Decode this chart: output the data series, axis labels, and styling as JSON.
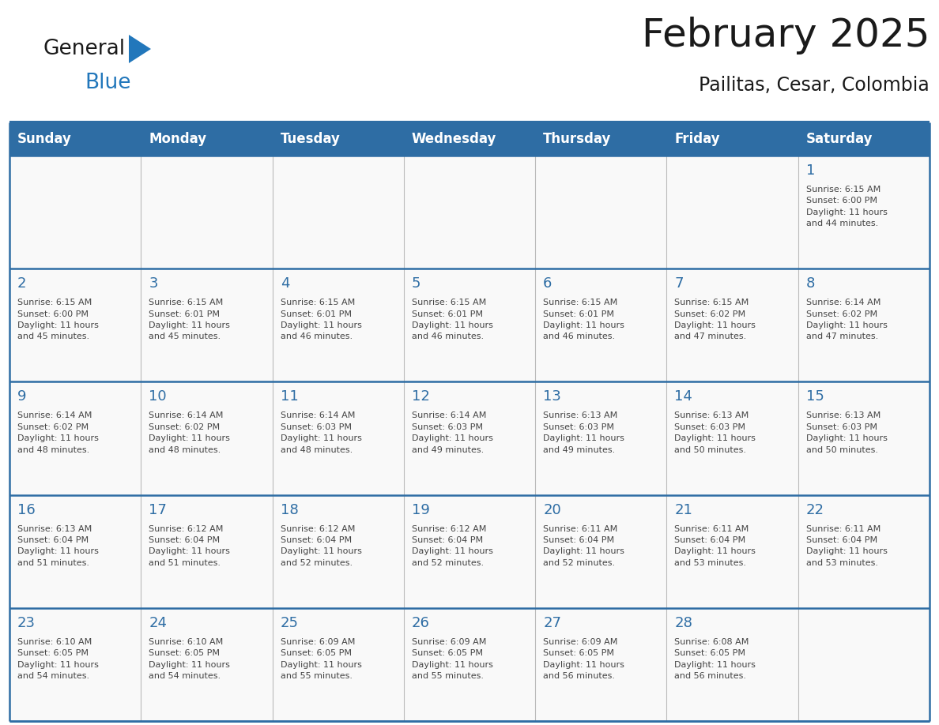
{
  "title": "February 2025",
  "subtitle": "Pailitas, Cesar, Colombia",
  "header_bg": "#2E6DA4",
  "header_fg": "#FFFFFF",
  "cell_bg": "#F9F9F9",
  "day_number_color": "#2E6DA4",
  "text_color": "#444444",
  "border_color": "#2E6DA4",
  "row_line_color": "#2E6DA4",
  "col_line_color": "#BBBBBB",
  "days_of_week": [
    "Sunday",
    "Monday",
    "Tuesday",
    "Wednesday",
    "Thursday",
    "Friday",
    "Saturday"
  ],
  "weeks": [
    [
      {
        "day": null,
        "info": null
      },
      {
        "day": null,
        "info": null
      },
      {
        "day": null,
        "info": null
      },
      {
        "day": null,
        "info": null
      },
      {
        "day": null,
        "info": null
      },
      {
        "day": null,
        "info": null
      },
      {
        "day": 1,
        "info": "Sunrise: 6:15 AM\nSunset: 6:00 PM\nDaylight: 11 hours\nand 44 minutes."
      }
    ],
    [
      {
        "day": 2,
        "info": "Sunrise: 6:15 AM\nSunset: 6:00 PM\nDaylight: 11 hours\nand 45 minutes."
      },
      {
        "day": 3,
        "info": "Sunrise: 6:15 AM\nSunset: 6:01 PM\nDaylight: 11 hours\nand 45 minutes."
      },
      {
        "day": 4,
        "info": "Sunrise: 6:15 AM\nSunset: 6:01 PM\nDaylight: 11 hours\nand 46 minutes."
      },
      {
        "day": 5,
        "info": "Sunrise: 6:15 AM\nSunset: 6:01 PM\nDaylight: 11 hours\nand 46 minutes."
      },
      {
        "day": 6,
        "info": "Sunrise: 6:15 AM\nSunset: 6:01 PM\nDaylight: 11 hours\nand 46 minutes."
      },
      {
        "day": 7,
        "info": "Sunrise: 6:15 AM\nSunset: 6:02 PM\nDaylight: 11 hours\nand 47 minutes."
      },
      {
        "day": 8,
        "info": "Sunrise: 6:14 AM\nSunset: 6:02 PM\nDaylight: 11 hours\nand 47 minutes."
      }
    ],
    [
      {
        "day": 9,
        "info": "Sunrise: 6:14 AM\nSunset: 6:02 PM\nDaylight: 11 hours\nand 48 minutes."
      },
      {
        "day": 10,
        "info": "Sunrise: 6:14 AM\nSunset: 6:02 PM\nDaylight: 11 hours\nand 48 minutes."
      },
      {
        "day": 11,
        "info": "Sunrise: 6:14 AM\nSunset: 6:03 PM\nDaylight: 11 hours\nand 48 minutes."
      },
      {
        "day": 12,
        "info": "Sunrise: 6:14 AM\nSunset: 6:03 PM\nDaylight: 11 hours\nand 49 minutes."
      },
      {
        "day": 13,
        "info": "Sunrise: 6:13 AM\nSunset: 6:03 PM\nDaylight: 11 hours\nand 49 minutes."
      },
      {
        "day": 14,
        "info": "Sunrise: 6:13 AM\nSunset: 6:03 PM\nDaylight: 11 hours\nand 50 minutes."
      },
      {
        "day": 15,
        "info": "Sunrise: 6:13 AM\nSunset: 6:03 PM\nDaylight: 11 hours\nand 50 minutes."
      }
    ],
    [
      {
        "day": 16,
        "info": "Sunrise: 6:13 AM\nSunset: 6:04 PM\nDaylight: 11 hours\nand 51 minutes."
      },
      {
        "day": 17,
        "info": "Sunrise: 6:12 AM\nSunset: 6:04 PM\nDaylight: 11 hours\nand 51 minutes."
      },
      {
        "day": 18,
        "info": "Sunrise: 6:12 AM\nSunset: 6:04 PM\nDaylight: 11 hours\nand 52 minutes."
      },
      {
        "day": 19,
        "info": "Sunrise: 6:12 AM\nSunset: 6:04 PM\nDaylight: 11 hours\nand 52 minutes."
      },
      {
        "day": 20,
        "info": "Sunrise: 6:11 AM\nSunset: 6:04 PM\nDaylight: 11 hours\nand 52 minutes."
      },
      {
        "day": 21,
        "info": "Sunrise: 6:11 AM\nSunset: 6:04 PM\nDaylight: 11 hours\nand 53 minutes."
      },
      {
        "day": 22,
        "info": "Sunrise: 6:11 AM\nSunset: 6:04 PM\nDaylight: 11 hours\nand 53 minutes."
      }
    ],
    [
      {
        "day": 23,
        "info": "Sunrise: 6:10 AM\nSunset: 6:05 PM\nDaylight: 11 hours\nand 54 minutes."
      },
      {
        "day": 24,
        "info": "Sunrise: 6:10 AM\nSunset: 6:05 PM\nDaylight: 11 hours\nand 54 minutes."
      },
      {
        "day": 25,
        "info": "Sunrise: 6:09 AM\nSunset: 6:05 PM\nDaylight: 11 hours\nand 55 minutes."
      },
      {
        "day": 26,
        "info": "Sunrise: 6:09 AM\nSunset: 6:05 PM\nDaylight: 11 hours\nand 55 minutes."
      },
      {
        "day": 27,
        "info": "Sunrise: 6:09 AM\nSunset: 6:05 PM\nDaylight: 11 hours\nand 56 minutes."
      },
      {
        "day": 28,
        "info": "Sunrise: 6:08 AM\nSunset: 6:05 PM\nDaylight: 11 hours\nand 56 minutes."
      },
      {
        "day": null,
        "info": null
      }
    ]
  ],
  "logo_color_general": "#1a1a1a",
  "logo_color_blue": "#2277BB",
  "logo_triangle_color": "#2277BB",
  "title_fontsize": 36,
  "subtitle_fontsize": 17,
  "header_fontsize": 12,
  "day_num_fontsize": 13,
  "info_fontsize": 8
}
